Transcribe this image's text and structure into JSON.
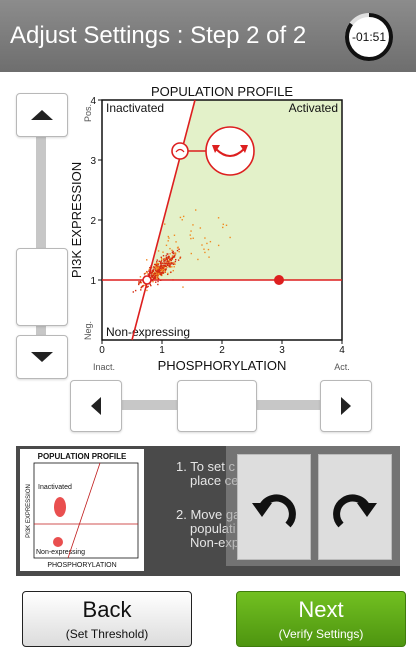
{
  "header": {
    "title": "Adjust Settings : Step 2 of 2",
    "timer": "-01:51",
    "timer_fraction_remaining": 0.85
  },
  "chart_data": {
    "type": "scatter",
    "title": "POPULATION PROFILE",
    "xlabel": "PHOSPHORYLATION",
    "ylabel": "PI3K EXPRESSION",
    "xlim": [
      0,
      4
    ],
    "ylim": [
      0,
      4
    ],
    "x_ticks": [
      "0",
      "1",
      "2",
      "3",
      "4"
    ],
    "y_ticks": [
      "1",
      "2",
      "3",
      "4"
    ],
    "x_end_labels": [
      "Inact.",
      "Act."
    ],
    "y_end_labels": [
      "Neg.",
      "Pos."
    ],
    "quadrant_labels": {
      "top_left": "Inactivated",
      "top_right": "Activated",
      "bottom_left": "Non-expressing"
    },
    "threshold_y": 1.0,
    "gate_line": [
      [
        0.5,
        0
      ],
      [
        1.55,
        4
      ]
    ],
    "handles": [
      {
        "x": 0.75,
        "y": 1.0
      },
      {
        "x": 2.95,
        "y": 1.0
      },
      {
        "x": 1.3,
        "y": 3.15
      }
    ],
    "cluster": {
      "center": [
        0.95,
        1.18
      ],
      "spread": [
        0.18,
        0.18
      ],
      "count": 420
    }
  },
  "mini_chart": {
    "title": "POPULATION PROFILE",
    "xlabel": "PHOSPHORYLATION",
    "ylabel": "PI3K EXPRESSION",
    "top_label": "Inactivated",
    "bottom_label": "Non-expressing"
  },
  "instructions": {
    "line1a": "1. To set c",
    "line1b": "place ce",
    "line2a": "2. Move ga",
    "line2b": "populati",
    "line2c": "Non-exp"
  },
  "buttons": {
    "back_label": "Back",
    "back_sub": "(Set Threshold)",
    "next_label": "Next",
    "next_sub": "(Verify Settings)"
  },
  "colors": {
    "accent_green": "#62ad19",
    "gate_red": "#dd1f1f",
    "active_region": "#e3f1c9"
  }
}
